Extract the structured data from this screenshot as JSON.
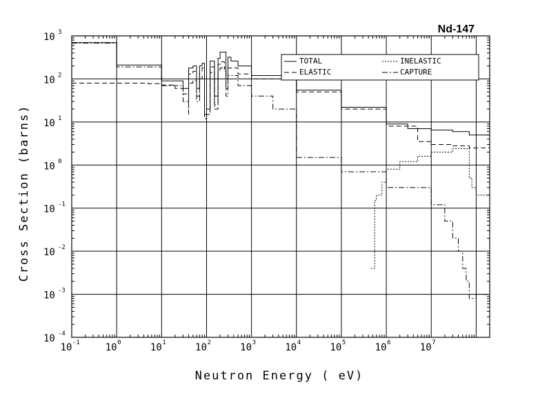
{
  "chart_data": {
    "type": "line",
    "title": "Nd-147",
    "xlabel": "Neutron Energy ( eV)",
    "ylabel": "Cross Section (barns)",
    "x_scale": "log",
    "y_scale": "log",
    "xlim": [
      0.01,
      20000000
    ],
    "ylim": [
      0.0001,
      1000
    ],
    "x_tick_labels": [
      {
        "base": "10",
        "exp": "-1"
      },
      {
        "base": "10",
        "exp": "0"
      },
      {
        "base": "10",
        "exp": "1"
      },
      {
        "base": "10",
        "exp": "2"
      },
      {
        "base": "10",
        "exp": "3"
      },
      {
        "base": "10",
        "exp": "4"
      },
      {
        "base": "10",
        "exp": "5"
      },
      {
        "base": "10",
        "exp": "6"
      },
      {
        "base": "10",
        "exp": "7"
      }
    ],
    "y_tick_labels": [
      {
        "base": "10",
        "exp": "-4"
      },
      {
        "base": "10",
        "exp": "-3"
      },
      {
        "base": "10",
        "exp": "-2"
      },
      {
        "base": "10",
        "exp": "-1"
      },
      {
        "base": "10",
        "exp": "0"
      },
      {
        "base": "10",
        "exp": "1"
      },
      {
        "base": "10",
        "exp": "2"
      },
      {
        "base": "10",
        "exp": "3"
      }
    ],
    "grid": true,
    "legend_position": "top-right",
    "series": [
      {
        "name": "TOTAL",
        "dash": "solid",
        "points": [
          [
            0.01,
            700
          ],
          [
            0.1,
            210
          ],
          [
            1,
            90
          ],
          [
            3,
            60
          ],
          [
            4,
            35
          ],
          [
            4,
            180
          ],
          [
            5,
            200
          ],
          [
            6,
            60
          ],
          [
            7,
            200
          ],
          [
            8,
            230
          ],
          [
            9,
            15
          ],
          [
            10,
            20
          ],
          [
            12,
            260
          ],
          [
            15,
            40
          ],
          [
            18,
            300
          ],
          [
            20,
            420
          ],
          [
            25,
            420
          ],
          [
            27,
            100
          ],
          [
            30,
            320
          ],
          [
            35,
            260
          ],
          [
            50,
            200
          ],
          [
            100,
            120
          ],
          [
            1000,
            55
          ],
          [
            10000,
            22
          ],
          [
            100000,
            9
          ],
          [
            300000,
            7
          ],
          [
            1000000,
            6.5
          ],
          [
            3000000,
            6
          ],
          [
            7000000,
            5
          ],
          [
            10000000,
            5
          ],
          [
            20000000,
            5
          ]
        ]
      },
      {
        "name": "ELASTIC",
        "dash": "dash",
        "points": [
          [
            0.01,
            80
          ],
          [
            0.1,
            80
          ],
          [
            0.5,
            78
          ],
          [
            1,
            72
          ],
          [
            2,
            60
          ],
          [
            3,
            45
          ],
          [
            4,
            25
          ],
          [
            4,
            130
          ],
          [
            5,
            150
          ],
          [
            6,
            40
          ],
          [
            7,
            150
          ],
          [
            8,
            180
          ],
          [
            9,
            15
          ],
          [
            10,
            18
          ],
          [
            12,
            190
          ],
          [
            15,
            25
          ],
          [
            18,
            220
          ],
          [
            20,
            250
          ],
          [
            25,
            180
          ],
          [
            27,
            60
          ],
          [
            30,
            180
          ],
          [
            50,
            130
          ],
          [
            100,
            100
          ],
          [
            1000,
            50
          ],
          [
            10000,
            20
          ],
          [
            100000,
            8
          ],
          [
            500000,
            3.5
          ],
          [
            1000000,
            3
          ],
          [
            3000000,
            2.8
          ],
          [
            6000000,
            2.8
          ],
          [
            7000000,
            2.5
          ],
          [
            10000000,
            2.5
          ],
          [
            20000000,
            3
          ]
        ]
      },
      {
        "name": "INELASTIC",
        "dash": "dot",
        "points": [
          [
            45000,
            0.004
          ],
          [
            50000,
            0.004
          ],
          [
            55000,
            0.15
          ],
          [
            60000,
            0.2
          ],
          [
            70000,
            0.2
          ],
          [
            80000,
            0.4
          ],
          [
            100000,
            0.8
          ],
          [
            200000,
            1.2
          ],
          [
            500000,
            1.6
          ],
          [
            1000000,
            2
          ],
          [
            3000000,
            2.4
          ],
          [
            5000000,
            2.4
          ],
          [
            6000000,
            2.4
          ],
          [
            7000000,
            0.5
          ],
          [
            8000000,
            0.3
          ],
          [
            10000000,
            0.2
          ],
          [
            20000000,
            0.1
          ]
        ]
      },
      {
        "name": "CAPTURE",
        "dash": "dashdot",
        "points": [
          [
            0.01,
            680
          ],
          [
            0.1,
            190
          ],
          [
            1,
            70
          ],
          [
            3,
            30
          ],
          [
            4,
            15
          ],
          [
            4,
            80
          ],
          [
            5,
            90
          ],
          [
            6,
            30
          ],
          [
            7,
            100
          ],
          [
            8,
            120
          ],
          [
            9,
            12
          ],
          [
            10,
            15
          ],
          [
            12,
            140
          ],
          [
            15,
            20
          ],
          [
            18,
            160
          ],
          [
            20,
            180
          ],
          [
            25,
            150
          ],
          [
            27,
            40
          ],
          [
            30,
            120
          ],
          [
            50,
            70
          ],
          [
            100,
            40
          ],
          [
            300,
            20
          ],
          [
            1000,
            1.5
          ],
          [
            10000,
            0.7
          ],
          [
            100000,
            0.3
          ],
          [
            1000000,
            0.12
          ],
          [
            2000000,
            0.05
          ],
          [
            3000000,
            0.02
          ],
          [
            4000000,
            0.01
          ],
          [
            5000000,
            0.004
          ],
          [
            6000000,
            0.002
          ],
          [
            7000000,
            0.0008
          ],
          [
            10000000,
            0.001
          ],
          [
            20000000,
            0.001
          ]
        ]
      }
    ]
  }
}
